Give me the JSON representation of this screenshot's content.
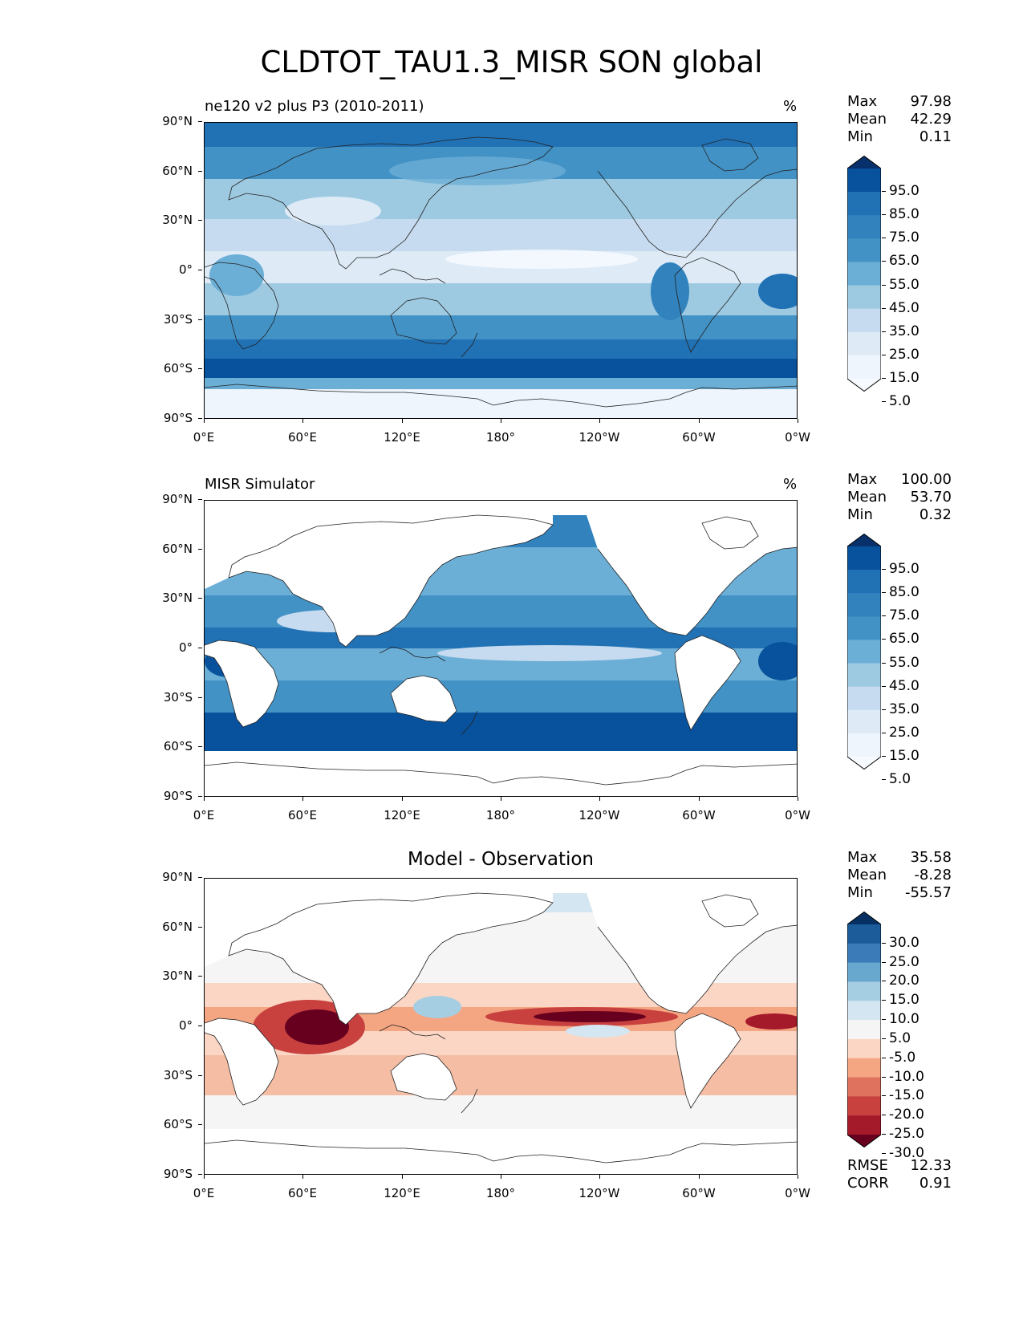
{
  "figure": {
    "title": "CLDTOT_TAU1.3_MISR SON global"
  },
  "axes": {
    "lat_ticks": [
      "90°N",
      "60°N",
      "30°N",
      "0°",
      "30°S",
      "60°S",
      "90°S"
    ],
    "lon_ticks": [
      "0°E",
      "60°E",
      "120°E",
      "180°",
      "120°W",
      "60°W",
      "0°W"
    ]
  },
  "panels": [
    {
      "title": "ne120 v2 plus P3 (2010-2011)",
      "units": "%",
      "stats": {
        "max_label": "Max",
        "max": "97.98",
        "mean_label": "Mean",
        "mean": "42.29",
        "min_label": "Min",
        "min": "0.11"
      },
      "colorbar": {
        "labels": [
          "95.0",
          "85.0",
          "75.0",
          "65.0",
          "55.0",
          "45.0",
          "35.0",
          "25.0",
          "15.0",
          "5.0"
        ],
        "colors": [
          "#08306b",
          "#08519c",
          "#2171b5",
          "#3182bd",
          "#4292c6",
          "#6baed6",
          "#9ecae1",
          "#c6dbef",
          "#deebf7",
          "#eef5fc",
          "#f7fbff"
        ]
      }
    },
    {
      "title": "MISR Simulator",
      "units": "%",
      "stats": {
        "max_label": "Max",
        "max": "100.00",
        "mean_label": "Mean",
        "mean": "53.70",
        "min_label": "Min",
        "min": "0.32"
      },
      "colorbar": {
        "labels": [
          "95.0",
          "85.0",
          "75.0",
          "65.0",
          "55.0",
          "45.0",
          "35.0",
          "25.0",
          "15.0",
          "5.0"
        ],
        "colors": [
          "#08306b",
          "#08519c",
          "#2171b5",
          "#3182bd",
          "#4292c6",
          "#6baed6",
          "#9ecae1",
          "#c6dbef",
          "#deebf7",
          "#eef5fc",
          "#f7fbff"
        ]
      }
    },
    {
      "title": "Model - Observation",
      "stats": {
        "max_label": "Max",
        "max": "35.58",
        "mean_label": "Mean",
        "mean": "-8.28",
        "min_label": "Min",
        "min": "-55.57"
      },
      "colorbar": {
        "labels": [
          "30.0",
          "25.0",
          "20.0",
          "15.0",
          "10.0",
          "5.0",
          "-5.0",
          "-10.0",
          "-15.0",
          "-20.0",
          "-25.0",
          "-30.0"
        ],
        "colors": [
          "#053061",
          "#1c5c9b",
          "#3a7bb8",
          "#68a8cf",
          "#a6cee3",
          "#d4e6f1",
          "#f5f5f5",
          "#fbd6c4",
          "#f4a582",
          "#de725e",
          "#c8413f",
          "#a51a2b",
          "#67001f"
        ]
      },
      "metrics": {
        "rmse_label": "RMSE",
        "rmse": "12.33",
        "corr_label": "CORR",
        "corr": "0.91"
      }
    }
  ]
}
